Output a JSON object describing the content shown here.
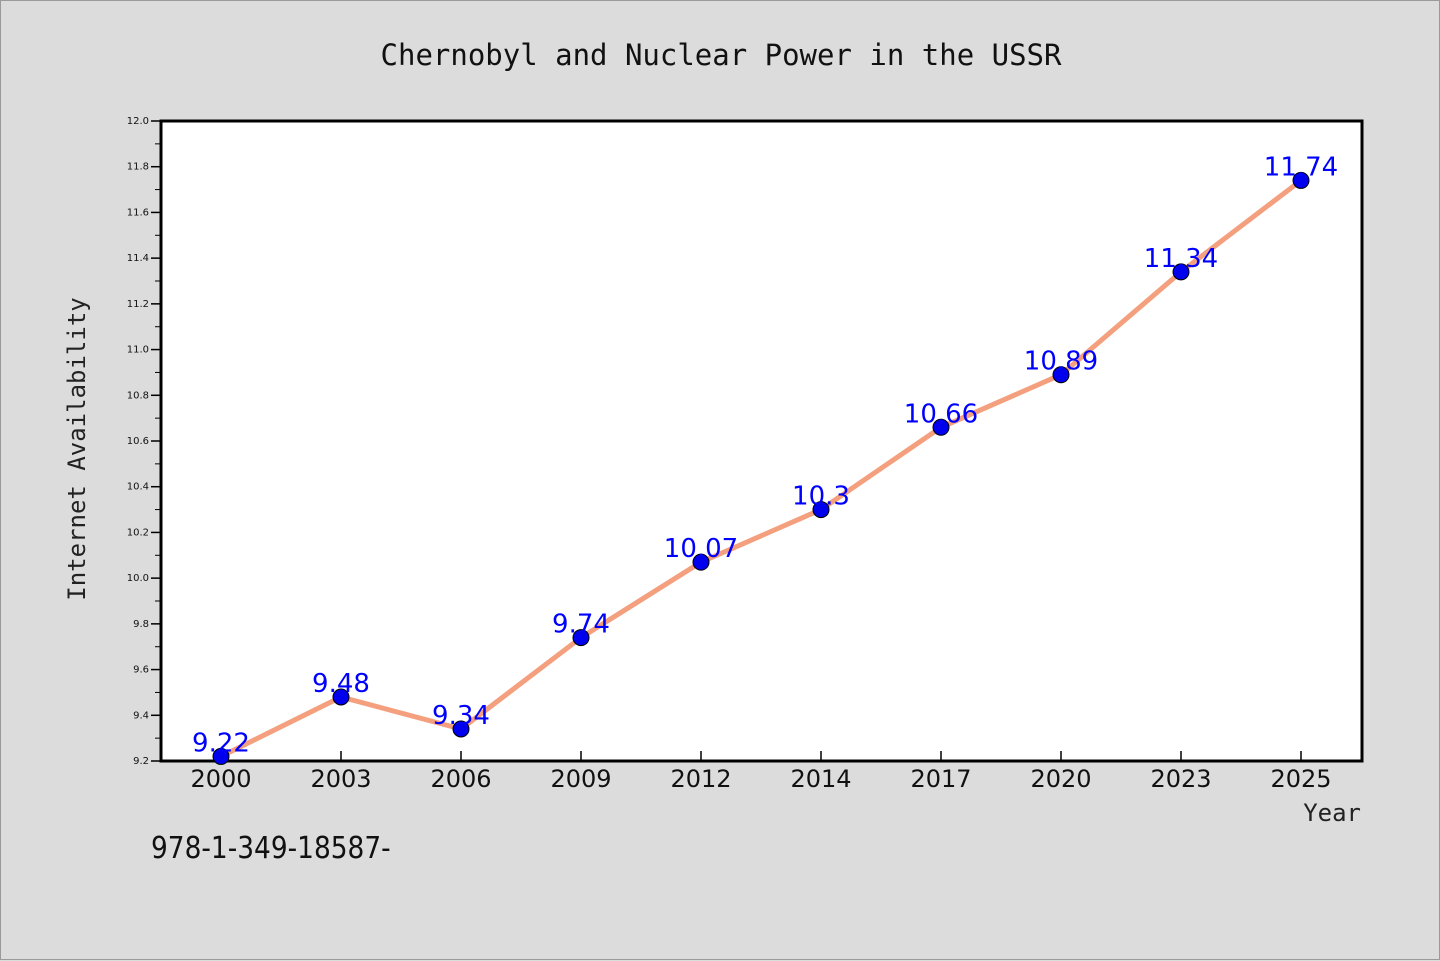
{
  "chart_data": {
    "type": "line",
    "title": "Chernobyl and Nuclear Power in the USSR",
    "xlabel": "Year",
    "ylabel": "Internet Availability",
    "categories": [
      "2000",
      "2003",
      "2006",
      "2009",
      "2012",
      "2014",
      "2017",
      "2020",
      "2023",
      "2025"
    ],
    "values": [
      9.22,
      9.48,
      9.34,
      9.74,
      10.07,
      10.3,
      10.66,
      10.89,
      11.34,
      11.74
    ],
    "data_labels": [
      "9.22",
      "9.48",
      "9.34",
      "9.74",
      "10.07",
      "10.3",
      "10.66",
      "10.89",
      "11.34",
      "11.74"
    ],
    "ylim": [
      9.2,
      12.0
    ],
    "y_ticks": [
      "9.2",
      "9.4",
      "9.6",
      "9.8",
      "10.0",
      "10.2",
      "10.4",
      "10.6",
      "10.8",
      "11.0",
      "11.2",
      "11.4",
      "11.6",
      "11.8",
      "12.0"
    ],
    "y_tick_values": [
      9.2,
      9.4,
      9.6,
      9.8,
      10.0,
      10.2,
      10.4,
      10.6,
      10.8,
      11.0,
      11.2,
      11.4,
      11.6,
      11.8,
      12.0
    ],
    "grid": false,
    "legend": "none",
    "line_color": "#f4a07e",
    "marker_color": "#0000ee",
    "label_color": "#0000ff",
    "axis_color": "#000000",
    "plot_background": "#ffffff"
  },
  "footer": {
    "code": "978-1-349-18587-"
  }
}
